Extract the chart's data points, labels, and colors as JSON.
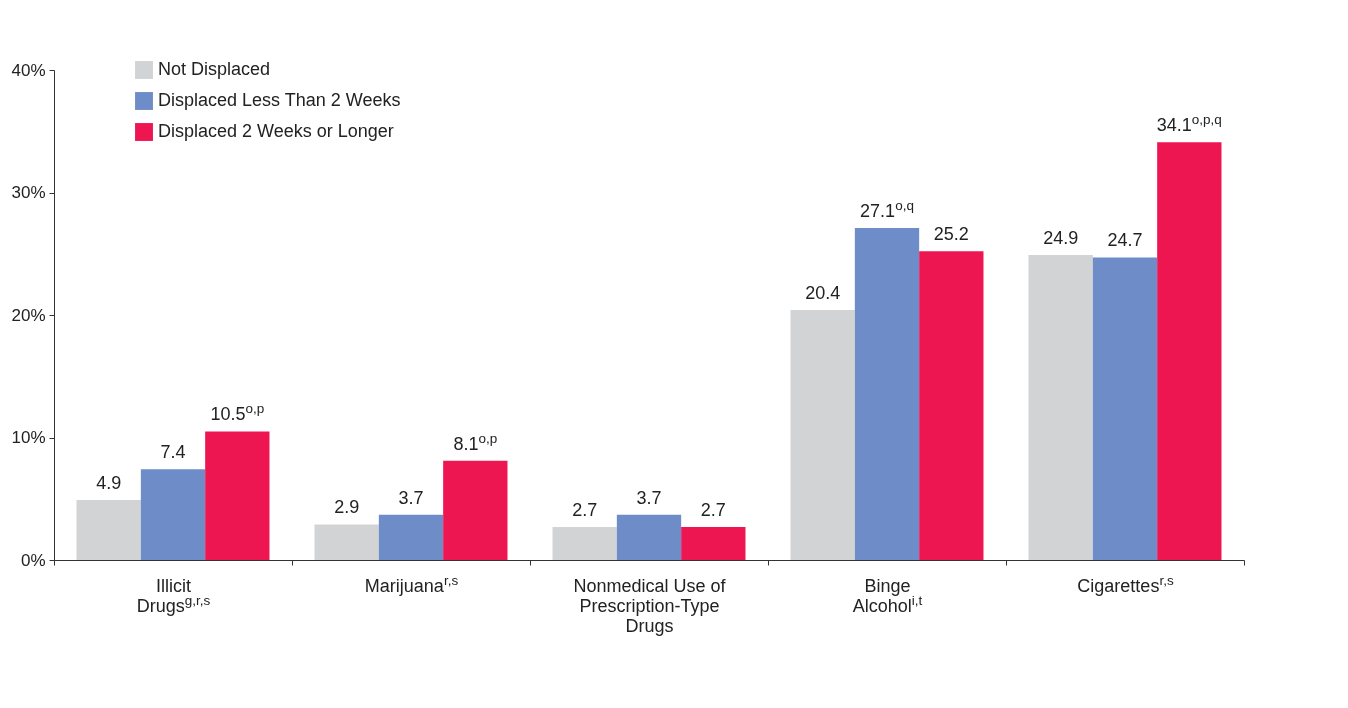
{
  "chart_data": {
    "type": "bar",
    "categories": [
      "Illicit Drugs$^{g,r,s}$",
      "Marijuana$^{r,s}$",
      "Nonmedical Use of Prescription-Type Drugs",
      "Binge Alcohol$^{i,t}$",
      "Cigarettes$^{r,s}$"
    ],
    "series": [
      {
        "name": "Not Displaced",
        "color": "#d1d3d4",
        "values": [
          4.9,
          2.9,
          2.7,
          20.4,
          24.9
        ],
        "value_labels": [
          "4.9",
          "2.9",
          "2.7",
          "20.4",
          "24.9"
        ]
      },
      {
        "name": "Displaced Less Than 2 Weeks",
        "color": "#6d8cc8",
        "values": [
          7.4,
          3.7,
          3.7,
          27.1,
          24.7
        ],
        "value_labels": [
          "7.4",
          "3.7",
          "3.7",
          "27.1$^{o,q}$",
          "24.7"
        ]
      },
      {
        "name": "Displaced 2 Weeks or Longer",
        "color": "#ed1651",
        "values": [
          10.5,
          8.1,
          2.7,
          25.2,
          34.1
        ],
        "value_labels": [
          "10.5$^{o,p}$",
          "8.1$^{o,p}$",
          "2.7",
          "25.2",
          "34.1$^{o,p,q}$"
        ]
      }
    ],
    "ylim": [
      0,
      40
    ],
    "yticks": [
      {
        "value": 0,
        "label": "0%"
      },
      {
        "value": 10,
        "label": "10%"
      },
      {
        "value": 20,
        "label": "20%"
      },
      {
        "value": 30,
        "label": "30%"
      },
      {
        "value": 40,
        "label": "40%"
      }
    ],
    "grid": false,
    "legend": "top left"
  }
}
